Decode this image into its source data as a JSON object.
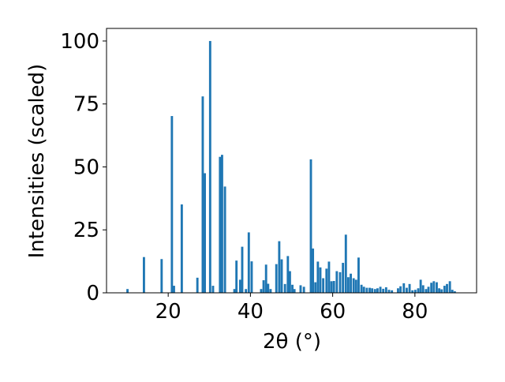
{
  "chart_data": {
    "type": "bar",
    "title": "",
    "xlabel": "2θ (°)",
    "ylabel": "Intensities (scaled)",
    "xlim": [
      5,
      95
    ],
    "ylim": [
      0,
      105
    ],
    "x_ticks": [
      20,
      40,
      60,
      80
    ],
    "y_ticks": [
      0,
      25,
      50,
      75,
      100
    ],
    "grid": false,
    "bar_color": "#1f77b4",
    "x": [
      10.1,
      14.1,
      18.4,
      20.9,
      21.4,
      23.3,
      27.1,
      28.4,
      28.9,
      30.2,
      30.9,
      32.6,
      33.1,
      33.8,
      36.1,
      36.6,
      37.5,
      38.0,
      38.9,
      39.6,
      40.3,
      42.6,
      43.2,
      43.8,
      44.3,
      44.9,
      46.3,
      47.0,
      47.6,
      48.4,
      49.1,
      49.6,
      50.2,
      50.7,
      52.2,
      53.0,
      54.7,
      55.2,
      55.8,
      56.4,
      57.0,
      57.7,
      58.5,
      59.1,
      59.7,
      60.3,
      61.0,
      61.8,
      62.5,
      63.2,
      63.8,
      64.4,
      65.1,
      65.7,
      66.3,
      67.0,
      67.6,
      68.3,
      69.0,
      69.6,
      70.3,
      70.9,
      71.6,
      72.3,
      73.0,
      73.7,
      74.4,
      75.9,
      76.5,
      77.3,
      78.0,
      78.7,
      79.4,
      80.1,
      80.8,
      81.4,
      82.0,
      82.7,
      83.3,
      84.0,
      84.6,
      85.3,
      85.9,
      86.5,
      87.2,
      87.8,
      88.5,
      89.1,
      89.7
    ],
    "values": [
      1.5,
      14.2,
      13.4,
      70.2,
      2.8,
      35.1,
      6.0,
      78.0,
      47.5,
      100.0,
      2.8,
      54.0,
      54.8,
      42.2,
      1.5,
      12.8,
      5.2,
      18.3,
      1.5,
      24.0,
      12.5,
      1.5,
      5.0,
      11.2,
      3.6,
      1.5,
      11.4,
      20.5,
      13.3,
      3.5,
      14.6,
      8.6,
      3.2,
      1.5,
      3.0,
      2.4,
      53.0,
      17.6,
      4.2,
      12.4,
      10.1,
      5.8,
      9.6,
      12.4,
      4.6,
      4.7,
      8.6,
      8.2,
      11.9,
      23.1,
      6.2,
      7.6,
      5.8,
      5.2,
      14.0,
      3.2,
      2.4,
      2.0,
      2.0,
      1.8,
      1.5,
      1.8,
      2.4,
      1.6,
      2.2,
      1.2,
      1.0,
      1.8,
      2.6,
      3.8,
      2.0,
      3.5,
      1.0,
      1.2,
      1.8,
      5.2,
      3.0,
      1.5,
      2.4,
      4.0,
      4.6,
      4.2,
      1.8,
      1.4,
      2.8,
      3.5,
      4.6,
      1.2,
      0.6
    ]
  }
}
